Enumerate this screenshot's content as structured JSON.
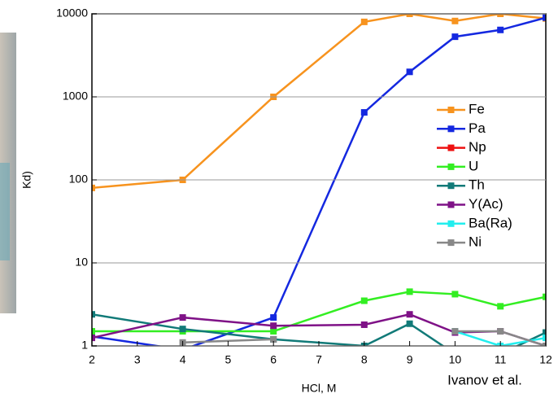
{
  "chart_data": {
    "type": "line",
    "x_label": "HCl, M",
    "y_label": "Kd)",
    "annotation": "Ivanov et al.",
    "x": [
      2,
      4,
      6,
      8,
      9,
      10,
      11,
      12
    ],
    "series": [
      {
        "name": "Fe",
        "color": "#f7931e",
        "values": [
          80,
          100,
          1000,
          8000,
          10000,
          8200,
          10000,
          8800
        ]
      },
      {
        "name": "Pa",
        "color": "#1428e0",
        "values": [
          1.3,
          0.9,
          2.2,
          650,
          2000,
          5300,
          6400,
          9000
        ]
      },
      {
        "name": "Np",
        "color": "#ee1111",
        "values": [
          null,
          null,
          null,
          null,
          null,
          null,
          null,
          null
        ]
      },
      {
        "name": "U",
        "color": "#33ee22",
        "values": [
          1.5,
          1.5,
          1.5,
          3.5,
          4.5,
          4.2,
          3.0,
          3.9
        ]
      },
      {
        "name": "Th",
        "color": "#117a78",
        "values": [
          2.4,
          1.6,
          1.2,
          1.0,
          1.85,
          0.8,
          0.8,
          1.45
        ]
      },
      {
        "name": "Y(Ac)",
        "color": "#7f1287",
        "values": [
          1.25,
          2.2,
          1.75,
          1.8,
          2.4,
          1.45,
          1.5,
          1.0
        ]
      },
      {
        "name": "Ba(Ra)",
        "color": "#22eeee",
        "values": [
          null,
          null,
          null,
          null,
          null,
          1.5,
          1.0,
          1.25
        ]
      },
      {
        "name": "Ni",
        "color": "#888888",
        "values": [
          null,
          1.1,
          1.2,
          null,
          null,
          1.5,
          1.5,
          1.0
        ]
      }
    ],
    "xlim": [
      2,
      12
    ],
    "xticks": [
      2,
      3,
      4,
      5,
      6,
      7,
      8,
      9,
      10,
      11,
      12
    ],
    "ylim": [
      1,
      10000
    ],
    "yticks": [
      1,
      10,
      100,
      1000,
      10000
    ],
    "log_y": true,
    "grid": true,
    "legend": "right"
  }
}
